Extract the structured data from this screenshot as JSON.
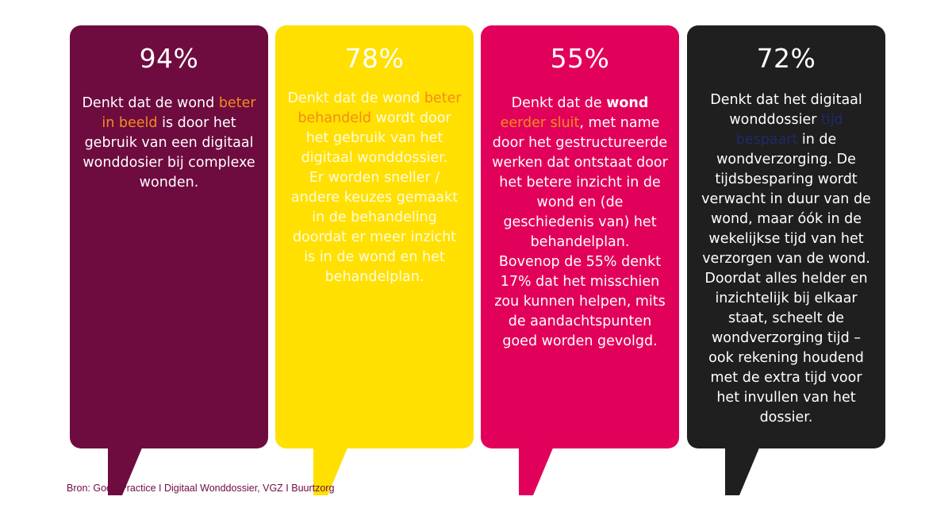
{
  "colors": {
    "card1": "#6e0b3f",
    "card2": "#ffe000",
    "card3": "#e2015a",
    "card4": "#1f1f1f",
    "highlight_orange": "#f28c1e",
    "highlight_navy": "#1f2a6b"
  },
  "cards": [
    {
      "percent": "94%",
      "text_pre": "Denkt dat de wond ",
      "highlight": "beter in beeld",
      "text_post": " is door het gebruik van een digitaal wonddosier bij complexe wonden."
    },
    {
      "percent": "78%",
      "text_pre": "Denkt dat de wond ",
      "highlight": "beter behandeld",
      "text_post": " wordt door het gebruik van het digitaal wonddossier.",
      "text_extra": "Er worden sneller / andere keuzes gemaakt in de behandeling doordat er meer inzicht is in de wond en het behandelplan."
    },
    {
      "percent": "55%",
      "text_pre": "Denkt dat de ",
      "highlight_bold": "wond",
      "text_space": " ",
      "highlight": "eerder sluit",
      "text_post": ", met name door het gestructureerde werken dat ontstaat door het betere inzicht in de wond en (de geschiedenis van) het behandelplan.",
      "text_extra": "Bovenop de 55% denkt 17% dat het misschien zou kunnen helpen, mits de aandachtspunten goed worden gevolgd."
    },
    {
      "percent": "72%",
      "text_pre": "Denkt dat het digitaal wonddossier ",
      "highlight": "tijd bespaart",
      "text_post": " in de wondverzorging. De tijdsbesparing wordt verwacht in duur van de wond, maar óók in de wekelijkse tijd van het verzorgen van de wond. Doordat alles helder en inzichtelijk bij elkaar staat, scheelt de wondverzorging tijd – ook rekening houdend met de extra tijd voor het invullen van het dossier."
    }
  ],
  "source": "Bron: Good Practice I Digitaal Wonddossier, VGZ I Buurtzorg"
}
